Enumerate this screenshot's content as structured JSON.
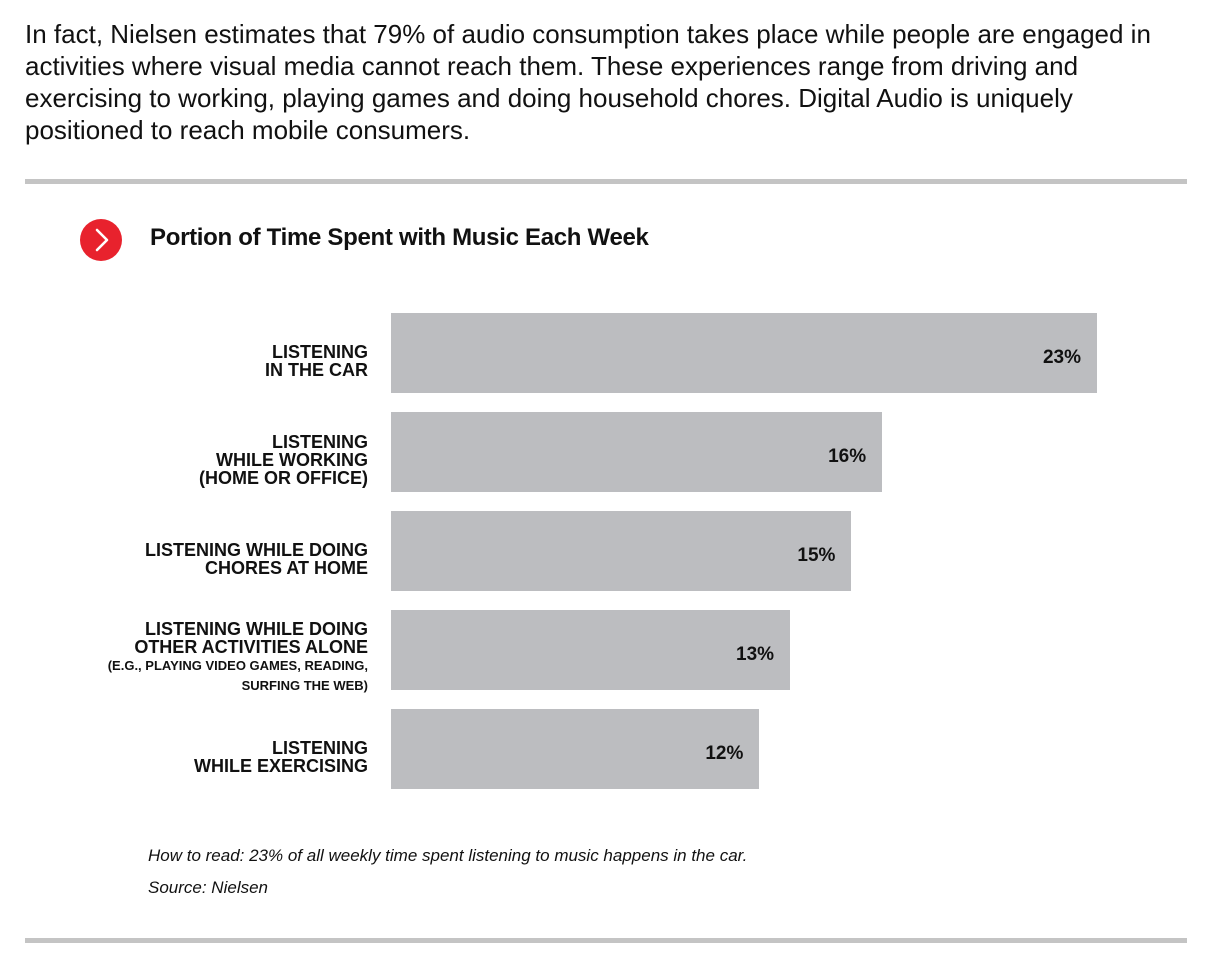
{
  "intro_text": "In fact, Nielsen estimates that 79% of audio consumption takes place while people are engaged in activities where visual media cannot reach them. These experiences range from driving and exercising to working, playing games and doing household chores. Digital Audio is uniquely positioned to reach mobile consumers.",
  "accent_color": "#e8222d",
  "bar_color": "#bcbdc0",
  "icon": "chevron-right-icon",
  "chart_data": {
    "type": "bar",
    "orientation": "horizontal",
    "title": "Portion of Time Spent with Music Each Week",
    "categories": [
      {
        "lines": [
          "LISTENING",
          "IN THE CAR"
        ],
        "sub": []
      },
      {
        "lines": [
          "LISTENING",
          "WHILE WORKING",
          "(HOME OR OFFICE)"
        ],
        "sub": []
      },
      {
        "lines": [
          "LISTENING WHILE DOING",
          "CHORES AT HOME"
        ],
        "sub": []
      },
      {
        "lines": [
          "LISTENING WHILE DOING",
          "OTHER ACTIVITIES ALONE"
        ],
        "sub": [
          "(E.G., PLAYING VIDEO GAMES, READING,",
          "SURFING THE WEB)"
        ]
      },
      {
        "lines": [
          "LISTENING",
          "WHILE EXERCISING"
        ],
        "sub": []
      }
    ],
    "values": [
      23,
      16,
      15,
      13,
      12
    ],
    "value_labels": [
      "23%",
      "16%",
      "15%",
      "13%",
      "12%"
    ],
    "unit": "%",
    "xlim": [
      0,
      23
    ],
    "grid": false,
    "legend": "none"
  },
  "how_to_read": "How to read: 23% of all weekly time spent listening to music happens in the car.",
  "source": "Source: Nielsen"
}
